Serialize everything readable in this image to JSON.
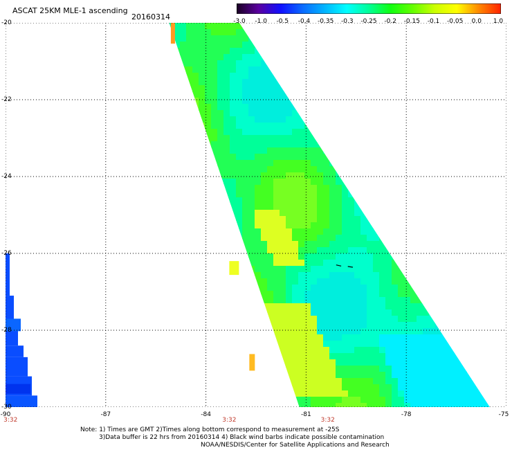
{
  "header": {
    "title": "ASCAT 25KM MLE-1 ascending",
    "date": "20160314"
  },
  "colorbar": {
    "labels": [
      "-3.0",
      "-1.0",
      "-0.5",
      "-0.4",
      "-0.35",
      "-0.3",
      "-0.25",
      "-0.2",
      "-0.15",
      "-0.1",
      "-0.05",
      "0.0",
      "1.0"
    ],
    "colors": [
      "#1a0022",
      "#5a00a0",
      "#1010ff",
      "#0a6bff",
      "#00b4ff",
      "#00ffff",
      "#00ff99",
      "#11ff11",
      "#66ff00",
      "#ccff00",
      "#ffff00",
      "#ff8800",
      "#ff2200"
    ]
  },
  "map": {
    "lat_labels": [
      "-20",
      "-22",
      "-24",
      "-26",
      "-28",
      "-30"
    ],
    "lon_labels": [
      "-90",
      "-87",
      "-84",
      "-81",
      "-78",
      "-75"
    ],
    "lat_range": [
      -30,
      -20
    ],
    "lon_range": [
      -90,
      -75
    ],
    "grid": true,
    "time_labels": [
      "3:32",
      "3:32",
      "3:32"
    ],
    "time_label_lons": [
      -90,
      -84,
      -81
    ],
    "time_label_color": "#c0392b"
  },
  "notes": {
    "line1": "Note: 1) Times are GMT 2)Times along bottom correspond to measurement at -25S",
    "line2": "3)Data buffer is 22 hrs from 20160314 4) Black wind barbs indicate possible contamination",
    "line3": "NOAA/NESDIS/Center for Satellite Applications and Research"
  }
}
